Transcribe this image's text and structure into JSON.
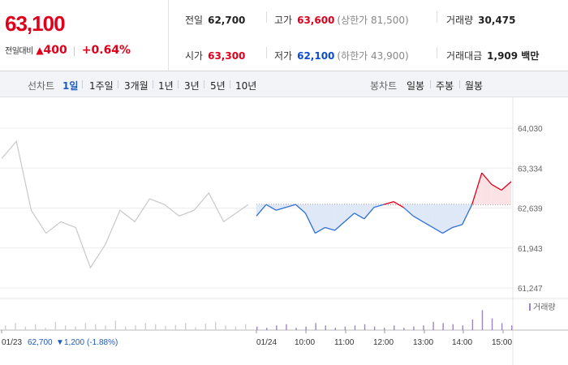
{
  "header": {
    "current_price": "63,100",
    "change_label": "전일대비",
    "change_arrow": "▲",
    "change_amount": "400",
    "change_percent": "+0.64%",
    "stats": {
      "prev_close": {
        "label": "전일",
        "value": "62,700"
      },
      "high": {
        "label": "고가",
        "value": "63,600",
        "sub": "(상한가 81,500)"
      },
      "volume": {
        "label": "거래량",
        "value": "30,475"
      },
      "open": {
        "label": "시가",
        "value": "63,300"
      },
      "low": {
        "label": "저가",
        "value": "62,100",
        "sub": "(하한가 43,900)"
      },
      "trade_value": {
        "label": "거래대금",
        "value": "1,909 백만"
      }
    }
  },
  "toolbar": {
    "line_label": "선차트",
    "line_periods": [
      "1일",
      "1주일",
      "3개월",
      "1년",
      "3년",
      "5년",
      "10년"
    ],
    "line_active": "1일",
    "candle_label": "봉차트",
    "candle_periods": [
      "일봉",
      "주봉",
      "월봉"
    ]
  },
  "chart_data": {
    "type": "line",
    "title": "",
    "xlabel": "",
    "ylabel": "",
    "y_ticks": [
      "64,030",
      "63,334",
      "62,639",
      "61,943",
      "61,247"
    ],
    "ylim": [
      61247,
      64030
    ],
    "baseline": 62700,
    "x_tick_labels": [
      "01/23",
      "01/24",
      "10:00",
      "11:00",
      "12:00",
      "13:00",
      "14:00",
      "15:00"
    ],
    "prev_day_info": {
      "date": "01/23",
      "close": "62,700",
      "arrow": "▼",
      "change": "1,200",
      "percent": "(-1.88%)"
    },
    "volume_legend": "거래량",
    "prev_day": {
      "x": [
        0,
        0.06,
        0.12,
        0.18,
        0.24,
        0.3,
        0.36,
        0.42,
        0.48,
        0.54,
        0.6,
        0.66,
        0.72,
        0.78,
        0.84,
        0.9,
        1.0
      ],
      "y": [
        63500,
        63800,
        62600,
        62200,
        62400,
        62300,
        61600,
        62000,
        62600,
        62400,
        62800,
        62700,
        62500,
        62600,
        62900,
        62400,
        62700
      ]
    },
    "today": {
      "x": [
        "09:00",
        "09:15",
        "09:30",
        "09:45",
        "10:00",
        "10:15",
        "10:30",
        "10:45",
        "11:00",
        "11:15",
        "11:30",
        "11:45",
        "12:00",
        "12:15",
        "12:30",
        "12:45",
        "13:00",
        "13:15",
        "13:30",
        "13:45",
        "14:00",
        "14:15",
        "14:30",
        "14:45",
        "15:00",
        "15:15",
        "15:30"
      ],
      "y": [
        62500,
        62700,
        62600,
        62650,
        62700,
        62550,
        62200,
        62300,
        62250,
        62400,
        62550,
        62450,
        62650,
        62700,
        62750,
        62650,
        62500,
        62400,
        62300,
        62200,
        62300,
        62350,
        62700,
        63250,
        63050,
        62950,
        63100
      ]
    },
    "volume": {
      "prev_day_relative": [
        0.2,
        0.3,
        0.15,
        0.25,
        0.1,
        0.35,
        0.2,
        0.15,
        0.3,
        0.25,
        0.2,
        0.4,
        0.15,
        0.2,
        0.3,
        0.25,
        0.18,
        0.22,
        0.3,
        0.12,
        0.28,
        0.35,
        0.2,
        0.15,
        0.25
      ],
      "today_relative": [
        0.15,
        0.1,
        0.2,
        0.25,
        0.1,
        0.15,
        0.3,
        0.2,
        0.1,
        0.15,
        0.2,
        0.25,
        0.15,
        0.1,
        0.2,
        0.1,
        0.15,
        0.2,
        0.35,
        0.3,
        0.25,
        0.2,
        0.45,
        0.85,
        0.5,
        0.3,
        0.2
      ]
    },
    "colors": {
      "up": "#e0001b",
      "down": "#2f6fd6",
      "prev": "#c8c8c8",
      "up_fill": "#fbe3e5",
      "down_fill": "#dfe8f7",
      "volume": "#9a86c4"
    }
  }
}
